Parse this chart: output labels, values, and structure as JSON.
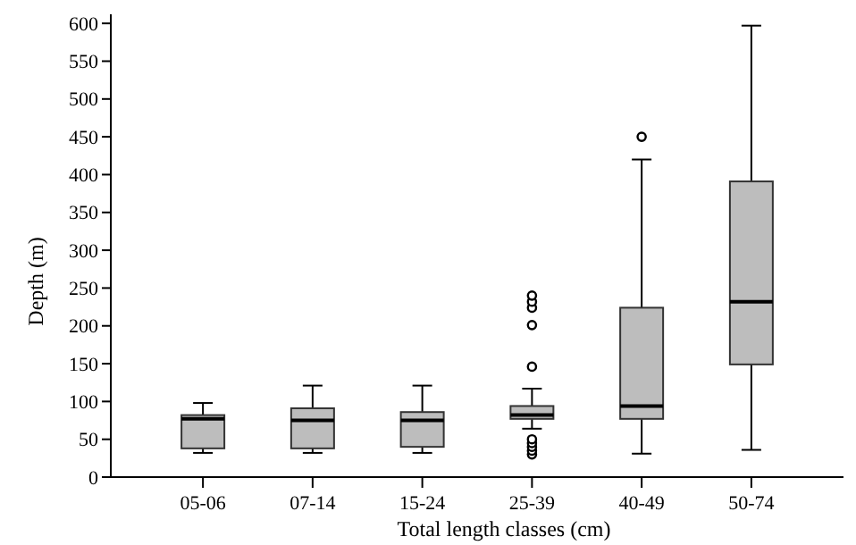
{
  "chart_data": {
    "type": "box",
    "xlabel": "Total length classes (cm)",
    "ylabel": "Depth (m)",
    "categories": [
      "05-06",
      "07-14",
      "15-24",
      "25-39",
      "40-49",
      "50-74"
    ],
    "color": "#bdbdbd",
    "ylim": [
      0,
      612
    ],
    "yticks": [
      0,
      50,
      100,
      150,
      200,
      250,
      300,
      350,
      400,
      450,
      500,
      550,
      600
    ],
    "boxes": [
      {
        "low": 32,
        "q1": 38,
        "median": 77,
        "q3": 82,
        "high": 98
      },
      {
        "low": 32,
        "q1": 38,
        "median": 75,
        "q3": 91,
        "high": 121
      },
      {
        "low": 32,
        "q1": 40,
        "median": 75,
        "q3": 86,
        "high": 121
      },
      {
        "low": 64,
        "q1": 77,
        "median": 82,
        "q3": 94,
        "high": 117,
        "outliers": [
          30,
          35,
          40,
          45,
          50,
          146,
          201,
          224,
          232,
          240
        ]
      },
      {
        "low": 31,
        "q1": 77,
        "median": 94,
        "q3": 224,
        "high": 420,
        "outliers": [
          450
        ]
      },
      {
        "low": 36,
        "q1": 149,
        "median": 232,
        "q3": 391,
        "high": 597
      }
    ]
  }
}
